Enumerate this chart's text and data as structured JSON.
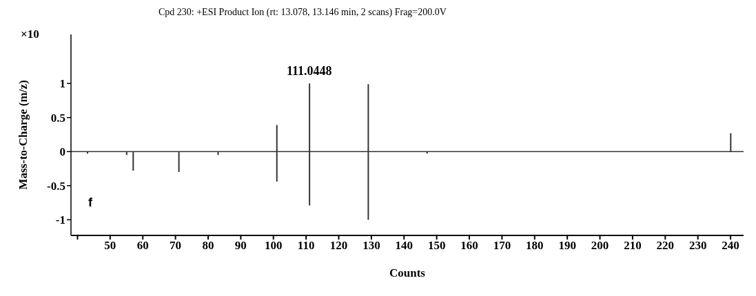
{
  "chart_data": {
    "type": "bar",
    "title": "Cpd 230: +ESI Product Ion (rt: 13.078, 13.146 min, 2 scans) Frag=200.0V",
    "xlabel": "Counts",
    "ylabel": "Mass-to-Charge (m/z)",
    "x": [
      43,
      55,
      57,
      71,
      83,
      101,
      111,
      129,
      147,
      240
    ],
    "series": [
      {
        "color": "#333333",
        "values": [
          null,
          null,
          null,
          null,
          null,
          0.39,
          1.0,
          0.99,
          null,
          0.27
        ]
      },
      {
        "color": "#333333",
        "values": [
          -0.03,
          -0.05,
          -0.28,
          -0.3,
          -0.05,
          -0.44,
          -0.79,
          -1.0,
          -0.03,
          null
        ]
      }
    ],
    "stacked": true,
    "xlim": [
      38,
      244
    ],
    "xticks": [
      {
        "value": 40,
        "label": null
      },
      50,
      60,
      70,
      80,
      90,
      100,
      110,
      120,
      130,
      140,
      150,
      160,
      170,
      180,
      190,
      200,
      210,
      220,
      230,
      240
    ],
    "ylim": [
      -1.23,
      1.72
    ],
    "yticks": [
      -1,
      -0.5,
      0,
      0.5,
      1
    ],
    "ref_lines": [
      {
        "axis": "y",
        "value": 0
      }
    ],
    "annotations": [
      "×10",
      "f",
      {
        "text": "111.0448",
        "x": 111,
        "y": 1.0
      }
    ]
  }
}
